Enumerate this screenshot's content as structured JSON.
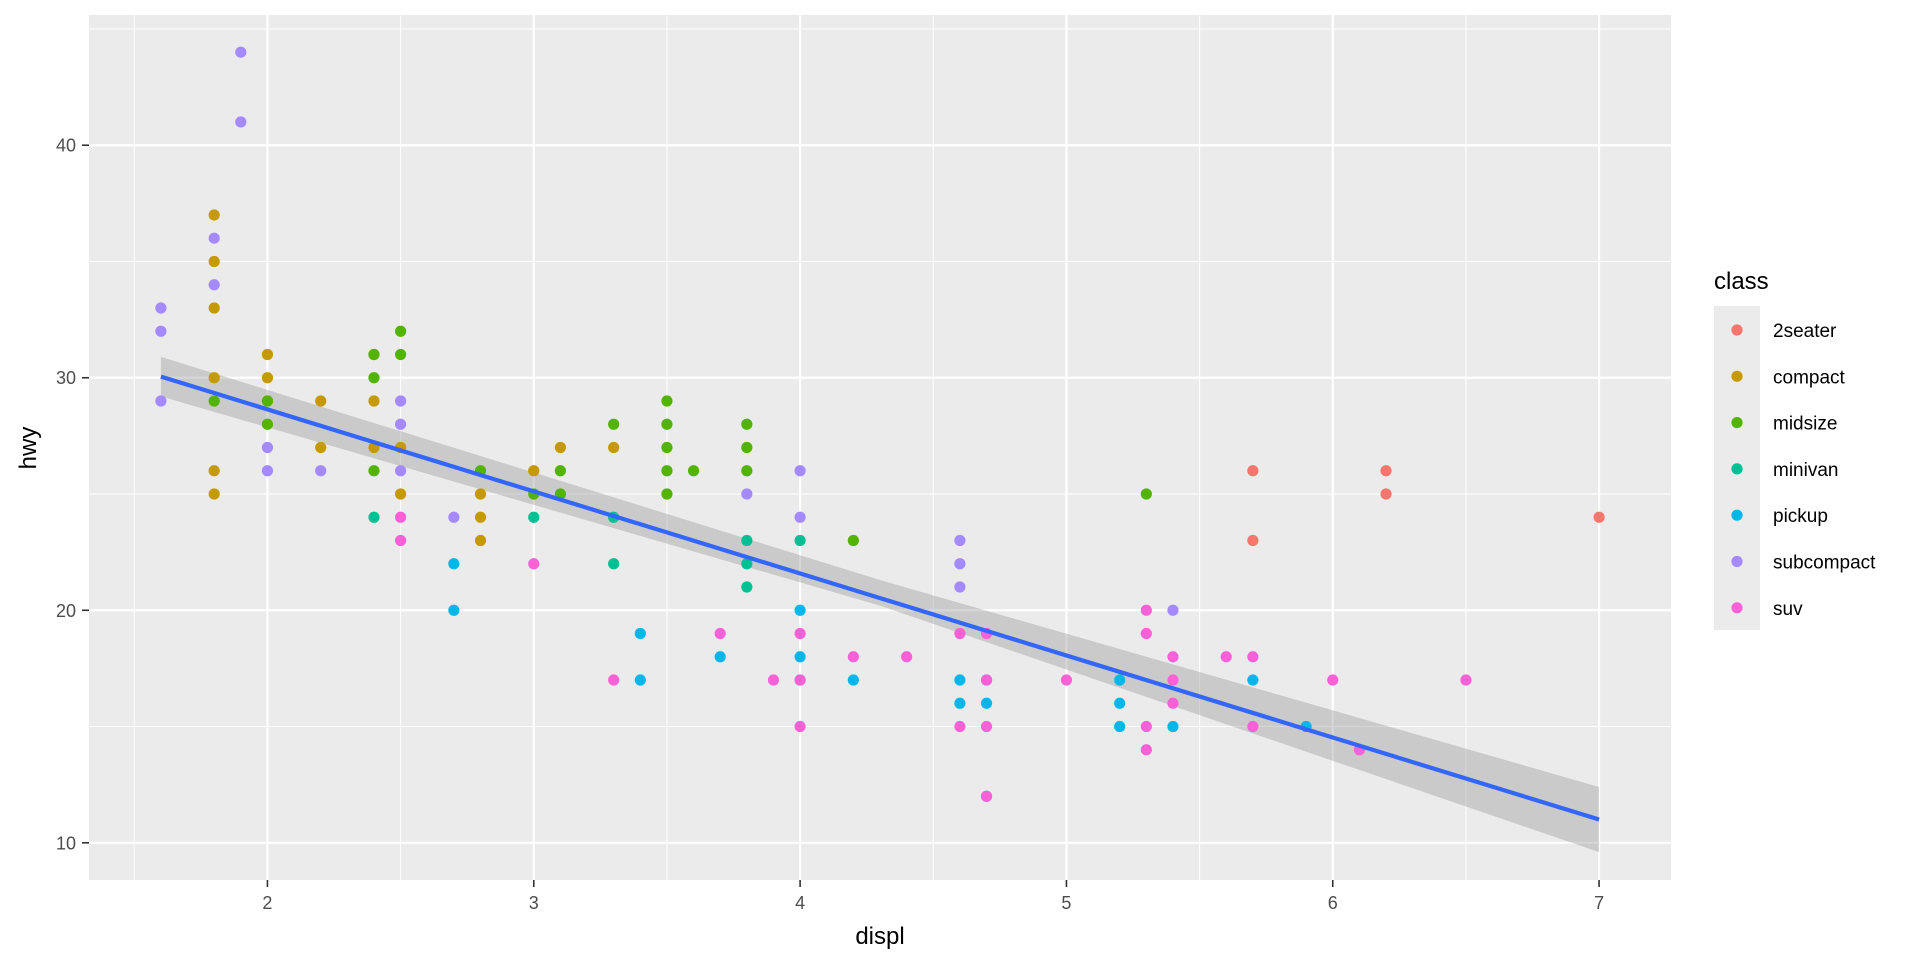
{
  "chart_data": {
    "type": "scatter",
    "xlabel": "displ",
    "ylabel": "hwy",
    "xlim": [
      1.33,
      7.27
    ],
    "ylim": [
      8.4,
      45.6
    ],
    "x_ticks": [
      2,
      3,
      4,
      5,
      6,
      7
    ],
    "y_ticks": [
      10,
      20,
      30,
      40
    ],
    "grid": true,
    "legend": {
      "title": "class",
      "position": "right"
    },
    "series": [
      {
        "name": "2seater",
        "color": "#F8766D",
        "points": [
          [
            5.7,
            26
          ],
          [
            5.7,
            23
          ],
          [
            6.2,
            26
          ],
          [
            6.2,
            25
          ],
          [
            7.0,
            24
          ]
        ]
      },
      {
        "name": "compact",
        "color": "#C49A00",
        "points": [
          [
            1.8,
            37
          ],
          [
            1.8,
            35
          ],
          [
            1.8,
            33
          ],
          [
            1.8,
            30
          ],
          [
            1.8,
            26
          ],
          [
            1.8,
            25
          ],
          [
            2.0,
            31
          ],
          [
            2.0,
            30
          ],
          [
            2.0,
            29
          ],
          [
            2.2,
            29
          ],
          [
            2.2,
            27
          ],
          [
            2.4,
            31
          ],
          [
            2.4,
            29
          ],
          [
            2.4,
            27
          ],
          [
            2.5,
            27
          ],
          [
            2.5,
            25
          ],
          [
            2.8,
            25
          ],
          [
            2.8,
            24
          ],
          [
            2.8,
            23
          ],
          [
            3.0,
            26
          ],
          [
            3.1,
            27
          ],
          [
            3.3,
            27
          ]
        ]
      },
      {
        "name": "midsize",
        "color": "#53B400",
        "points": [
          [
            1.8,
            29
          ],
          [
            2.0,
            29
          ],
          [
            2.0,
            28
          ],
          [
            2.4,
            31
          ],
          [
            2.4,
            30
          ],
          [
            2.4,
            26
          ],
          [
            2.5,
            32
          ],
          [
            2.5,
            31
          ],
          [
            2.8,
            26
          ],
          [
            3.0,
            25
          ],
          [
            3.1,
            26
          ],
          [
            3.1,
            25
          ],
          [
            3.3,
            28
          ],
          [
            3.5,
            29
          ],
          [
            3.5,
            28
          ],
          [
            3.5,
            27
          ],
          [
            3.5,
            26
          ],
          [
            3.5,
            25
          ],
          [
            3.6,
            26
          ],
          [
            3.8,
            28
          ],
          [
            3.8,
            27
          ],
          [
            3.8,
            26
          ],
          [
            4.2,
            23
          ],
          [
            5.3,
            25
          ]
        ]
      },
      {
        "name": "minivan",
        "color": "#00C094",
        "points": [
          [
            2.4,
            24
          ],
          [
            3.0,
            24
          ],
          [
            3.3,
            24
          ],
          [
            3.3,
            22
          ],
          [
            3.8,
            23
          ],
          [
            3.8,
            22
          ],
          [
            3.8,
            21
          ],
          [
            4.0,
            23
          ]
        ]
      },
      {
        "name": "pickup",
        "color": "#00B6EB",
        "points": [
          [
            2.7,
            22
          ],
          [
            2.7,
            20
          ],
          [
            3.4,
            19
          ],
          [
            3.4,
            17
          ],
          [
            3.7,
            18
          ],
          [
            4.0,
            20
          ],
          [
            4.0,
            18
          ],
          [
            4.0,
            17
          ],
          [
            4.2,
            17
          ],
          [
            4.6,
            17
          ],
          [
            4.6,
            16
          ],
          [
            4.7,
            17
          ],
          [
            4.7,
            16
          ],
          [
            4.7,
            12
          ],
          [
            5.2,
            17
          ],
          [
            5.2,
            16
          ],
          [
            5.2,
            15
          ],
          [
            5.4,
            15
          ],
          [
            5.7,
            17
          ],
          [
            5.9,
            15
          ]
        ]
      },
      {
        "name": "subcompact",
        "color": "#A58AFF",
        "points": [
          [
            1.6,
            33
          ],
          [
            1.6,
            32
          ],
          [
            1.6,
            29
          ],
          [
            1.8,
            36
          ],
          [
            1.8,
            34
          ],
          [
            1.9,
            44
          ],
          [
            1.9,
            41
          ],
          [
            2.0,
            27
          ],
          [
            2.0,
            26
          ],
          [
            2.2,
            26
          ],
          [
            2.5,
            29
          ],
          [
            2.5,
            28
          ],
          [
            2.5,
            26
          ],
          [
            2.7,
            24
          ],
          [
            3.8,
            25
          ],
          [
            4.0,
            26
          ],
          [
            4.0,
            24
          ],
          [
            4.6,
            23
          ],
          [
            4.6,
            22
          ],
          [
            4.6,
            21
          ],
          [
            5.4,
            20
          ]
        ]
      },
      {
        "name": "suv",
        "color": "#FB61D7",
        "points": [
          [
            2.5,
            24
          ],
          [
            2.5,
            23
          ],
          [
            3.0,
            22
          ],
          [
            3.3,
            17
          ],
          [
            3.7,
            19
          ],
          [
            3.9,
            17
          ],
          [
            4.0,
            19
          ],
          [
            4.0,
            17
          ],
          [
            4.0,
            15
          ],
          [
            4.2,
            18
          ],
          [
            4.4,
            18
          ],
          [
            4.6,
            19
          ],
          [
            4.6,
            15
          ],
          [
            4.7,
            19
          ],
          [
            4.7,
            17
          ],
          [
            4.7,
            15
          ],
          [
            4.7,
            12
          ],
          [
            5.0,
            17
          ],
          [
            5.3,
            20
          ],
          [
            5.3,
            19
          ],
          [
            5.3,
            15
          ],
          [
            5.3,
            14
          ],
          [
            5.4,
            18
          ],
          [
            5.4,
            17
          ],
          [
            5.4,
            16
          ],
          [
            5.6,
            18
          ],
          [
            5.7,
            18
          ],
          [
            5.7,
            15
          ],
          [
            6.0,
            17
          ],
          [
            6.1,
            14
          ],
          [
            6.5,
            17
          ]
        ]
      }
    ],
    "smooth": {
      "method": "lm",
      "color": "#3366FF",
      "band_color": "#999999",
      "line": [
        [
          1.6,
          30.05
        ],
        [
          7.0,
          11.0
        ]
      ],
      "band_lower": [
        [
          1.6,
          29.2
        ],
        [
          4.3,
          20.2
        ],
        [
          7.0,
          9.6
        ]
      ],
      "band_upper": [
        [
          1.6,
          30.9
        ],
        [
          4.3,
          21.3
        ],
        [
          7.0,
          12.4
        ]
      ]
    }
  }
}
